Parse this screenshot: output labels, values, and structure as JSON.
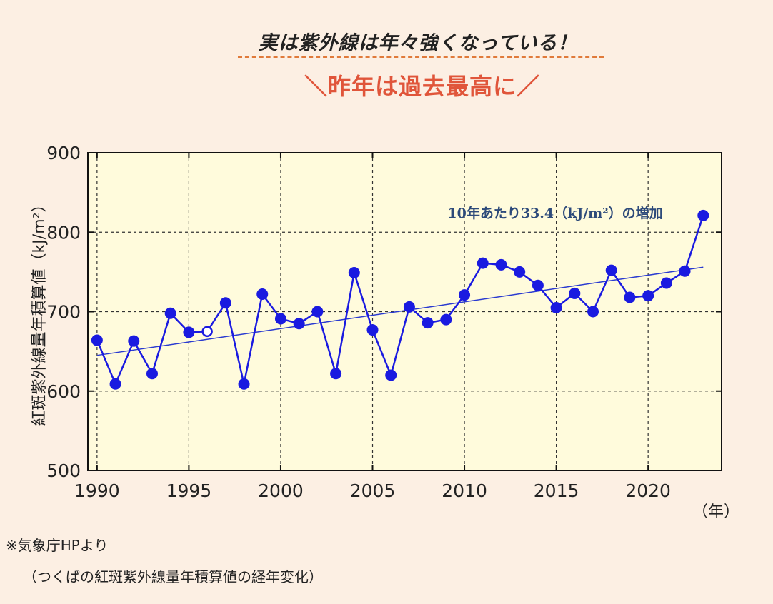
{
  "header": {
    "headline": "実は紫外線は年々強くなっている！",
    "subhead": "＼昨年は過去最高に／"
  },
  "colors": {
    "background": "#fcefe3",
    "plot_background": "#fffbdc",
    "series": "#1a1ae0",
    "trend": "#2a3ad0",
    "accent": "#e0553a",
    "headline_rule": "#e07a3a",
    "annotation": "#2d4a7a"
  },
  "chart_data": {
    "type": "line",
    "ylabel": "紅斑紫外線量年積算値（kJ/m²）",
    "xlabel": "（年）",
    "xlim": [
      1989.5,
      2024
    ],
    "ylim": [
      500,
      900
    ],
    "yticks": [
      500,
      600,
      700,
      800,
      900
    ],
    "xticks": [
      1990,
      1995,
      2000,
      2005,
      2010,
      2015,
      2020
    ],
    "grid": true,
    "annotation": "10年あたり33.4（kJ/m²）の増加",
    "series": [
      {
        "x": [
          1990,
          1991,
          1992,
          1993,
          1994,
          1995,
          1996,
          1997,
          1998,
          1999,
          2000,
          2001,
          2002,
          2003,
          2004,
          2005,
          2006,
          2007,
          2008,
          2009,
          2010,
          2011,
          2012,
          2013,
          2014,
          2015,
          2016,
          2017,
          2018,
          2019,
          2020,
          2021,
          2022,
          2023
        ],
        "values": [
          664,
          609,
          663,
          622,
          698,
          674,
          675,
          711,
          609,
          722,
          691,
          685,
          700,
          622,
          749,
          677,
          620,
          706,
          686,
          690,
          721,
          761,
          759,
          750,
          733,
          705,
          723,
          700,
          752,
          718,
          720,
          736,
          751,
          821
        ],
        "open_markers_x": [
          1996
        ]
      }
    ],
    "trend": {
      "x": [
        1990,
        2023
      ],
      "values": [
        645,
        756
      ]
    }
  },
  "source": {
    "line1": "※気象庁HPより",
    "line2": "（つくばの紅斑紫外線量年積算値の経年変化）"
  }
}
